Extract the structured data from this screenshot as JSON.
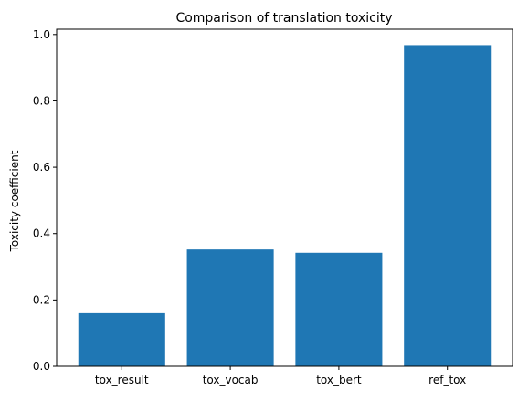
{
  "chart_data": {
    "type": "bar",
    "title": "Comparison of translation toxicity",
    "xlabel": "",
    "ylabel": "Toxicity coefficient",
    "categories": [
      "tox_result",
      "tox_vocab",
      "tox_bert",
      "ref_tox"
    ],
    "values": [
      0.16,
      0.352,
      0.342,
      0.968
    ],
    "ylim": [
      0,
      1.016
    ],
    "yticks": [
      0.0,
      0.2,
      0.4,
      0.6,
      0.8,
      1.0
    ],
    "ytick_labels": [
      "0.0",
      "0.2",
      "0.4",
      "0.6",
      "0.8",
      "1.0"
    ],
    "bar_color": "#1f77b4",
    "grid": false,
    "legend": "none"
  }
}
